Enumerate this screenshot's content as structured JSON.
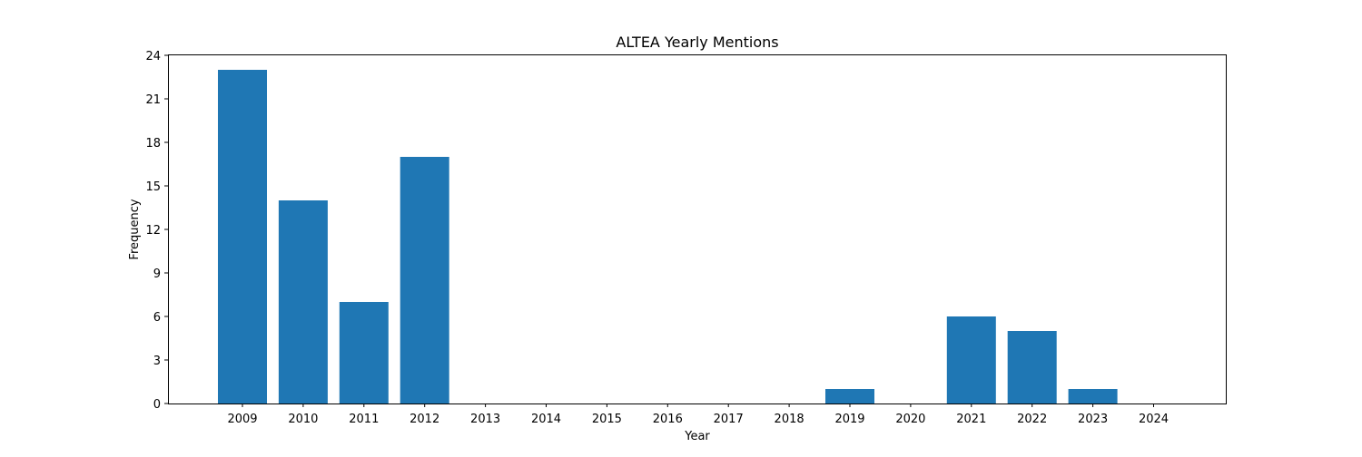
{
  "chart_data": {
    "type": "bar",
    "title": "ALTEA Yearly Mentions",
    "xlabel": "Year",
    "ylabel": "Frequency",
    "categories": [
      "2009",
      "2010",
      "2011",
      "2012",
      "2013",
      "2014",
      "2015",
      "2016",
      "2017",
      "2018",
      "2019",
      "2020",
      "2021",
      "2022",
      "2023",
      "2024"
    ],
    "values": [
      23,
      14,
      7,
      17,
      0,
      0,
      0,
      0,
      0,
      0,
      1,
      0,
      6,
      5,
      1,
      0
    ],
    "ylim": [
      0,
      24
    ],
    "yticks": [
      0,
      3,
      6,
      9,
      12,
      15,
      18,
      21,
      24
    ],
    "bar_color": "#1f77b4",
    "grid": false,
    "legend": "none"
  }
}
